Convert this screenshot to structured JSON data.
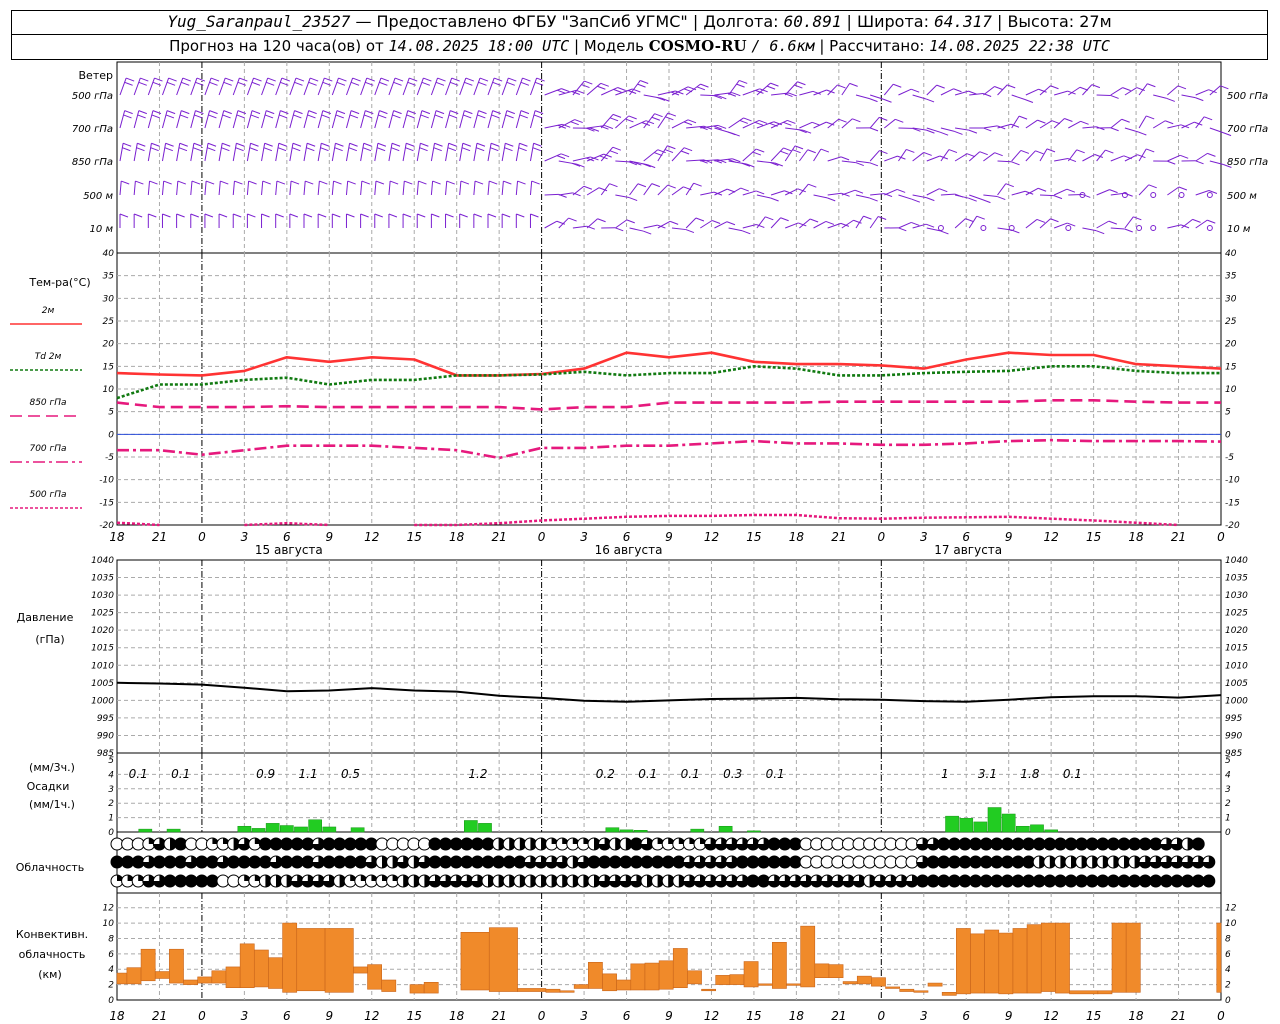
{
  "header": {
    "station": "Yug_Saranpaul_23527",
    "provider": "— Предоставлено ФГБУ \"ЗапСиб УГМС\"",
    "lon_label": "Долгота:",
    "lon": "60.891",
    "lat_label": "Широта:",
    "lat": "64.317",
    "alt_label": "Высота:",
    "alt": "27м",
    "forecast_label": "Прогноз на 120 часа(ов) от",
    "forecast_time": "14.08.2025 18:00 UTC",
    "model_label": "Модель",
    "model": "COSMO-RU",
    "resolution": "/ 6.6км",
    "calc_label": "Рассчитано:",
    "calc_time": "14.08.2025 22:38 UTC"
  },
  "colors": {
    "t2m": "#ff3333",
    "td2m": "#117a11",
    "t850": "#e6197d",
    "t700": "#e6197d",
    "t500": "#e6197d",
    "pressure": "#000000",
    "precip": "#22cc22",
    "convective": "#f08a2a",
    "wind": "#7a1fd0"
  },
  "time_axis": {
    "hour_labels": [
      "18",
      "21",
      "0",
      "3",
      "6",
      "9",
      "12",
      "15",
      "18",
      "21",
      "0",
      "3",
      "6",
      "9",
      "12",
      "15",
      "18",
      "21",
      "0",
      "3",
      "6",
      "9",
      "12",
      "15",
      "18",
      "21",
      "0"
    ],
    "day_labels": [
      {
        "label": "15 августа",
        "at_hour": 12
      },
      {
        "label": "16 августа",
        "at_hour": 36
      },
      {
        "label": "17 августа",
        "at_hour": 60
      }
    ]
  },
  "wind_panel": {
    "title": "Ветер",
    "levels": [
      "500 гПа",
      "700 гПа",
      "850 гПа",
      "500 м",
      "10   м"
    ]
  },
  "temperature_panel": {
    "title": "Тем-ра(°C)",
    "legend": [
      {
        "label": "2м",
        "series": "t2m",
        "dash": "solid"
      },
      {
        "label": "Td  2м",
        "series": "td2m",
        "dash": "dotted"
      },
      {
        "label": "850 гПа",
        "series": "t850",
        "dash": "dashed"
      },
      {
        "label": "700 гПа",
        "series": "t700",
        "dash": "dashdot"
      },
      {
        "label": "500 гПа",
        "series": "t500",
        "dash": "dotted"
      }
    ]
  },
  "pressure_panel": {
    "title_line1": "Давление",
    "title_line2": "(гПа)"
  },
  "precip_panel": {
    "line1": "(мм/3ч.)",
    "line2": "Осадки",
    "line3": "(мм/1ч.)"
  },
  "cloud_panel": {
    "title": "Облачность"
  },
  "convective_panel": {
    "line1": "Конвективн.",
    "line2": "облачность",
    "line3": "(км)"
  },
  "chart_data": [
    {
      "type": "line",
      "name": "temperature",
      "x_hours": [
        0,
        3,
        6,
        9,
        12,
        15,
        18,
        21,
        24,
        27,
        30,
        33,
        36,
        39,
        42,
        45,
        48,
        51,
        54,
        57,
        60,
        63,
        66,
        69,
        72,
        75,
        78
      ],
      "ylim": [
        -20,
        40
      ],
      "yticks": [
        -20,
        -15,
        -10,
        -5,
        0,
        5,
        10,
        15,
        20,
        25,
        30,
        35,
        40
      ],
      "series": [
        {
          "name": "2м",
          "key": "t2m",
          "values": [
            13.5,
            13.2,
            13,
            14,
            17,
            16,
            17,
            16.5,
            13,
            13,
            13.3,
            14.5,
            18,
            17,
            18,
            16,
            15.5,
            15.5,
            15.2,
            14.5,
            16.5,
            18,
            17.5,
            17.5,
            15.5,
            15,
            14.5
          ]
        },
        {
          "name": "Td  2м",
          "key": "td2m",
          "values": [
            8,
            11,
            11,
            12,
            12.5,
            11,
            12,
            12,
            13,
            13,
            13.2,
            13.8,
            13,
            13.5,
            13.5,
            15,
            14.5,
            13,
            13,
            13.5,
            13.8,
            14,
            15,
            15,
            14,
            13.5,
            13.5
          ]
        },
        {
          "name": "850 гПа",
          "key": "t850",
          "values": [
            7,
            6,
            6,
            6,
            6.2,
            6,
            6,
            6,
            6,
            6,
            5.5,
            6,
            6,
            7,
            7,
            7,
            7,
            7.2,
            7.2,
            7.2,
            7.2,
            7.2,
            7.5,
            7.5,
            7.2,
            7,
            7
          ]
        },
        {
          "name": "700 гПа",
          "key": "t700",
          "values": [
            -3.5,
            -3.5,
            -4.5,
            -3.5,
            -2.5,
            -2.5,
            -2.5,
            -3,
            -3.5,
            -5.2,
            -3,
            -3,
            -2.5,
            -2.5,
            -2,
            -1.5,
            -2,
            -2,
            -2.3,
            -2.3,
            -2,
            -1.5,
            -1.3,
            -1.5,
            -1.5,
            -1.5,
            -1.6
          ]
        },
        {
          "name": "500 гПа",
          "key": "t500",
          "values": [
            -19.5,
            -20,
            null,
            -20,
            -19.6,
            -20,
            null,
            -20,
            -20,
            -19.6,
            -19,
            -18.6,
            -18.2,
            -18,
            -18,
            -17.8,
            -17.8,
            -18.5,
            -18.6,
            -18.4,
            -18.3,
            -18.2,
            -18.6,
            -19,
            -19.5,
            -20,
            null
          ]
        }
      ]
    },
    {
      "type": "line",
      "name": "pressure",
      "x_hours": [
        0,
        3,
        6,
        9,
        12,
        15,
        18,
        21,
        24,
        27,
        30,
        33,
        36,
        39,
        42,
        45,
        48,
        51,
        54,
        57,
        60,
        63,
        66,
        69,
        72,
        75,
        78
      ],
      "ylim": [
        985,
        1040
      ],
      "yticks": [
        985,
        990,
        995,
        1000,
        1005,
        1010,
        1015,
        1020,
        1025,
        1030,
        1035,
        1040
      ],
      "series": [
        {
          "name": "",
          "key": "pressure",
          "values": [
            1005,
            1004.8,
            1004.5,
            1003.6,
            1002.6,
            1002.8,
            1003.5,
            1002.8,
            1002.5,
            1001.3,
            1000.7,
            999.9,
            999.6,
            1000,
            1000.4,
            1000.5,
            1000.7,
            1000.3,
            1000.2,
            999.8,
            999.6,
            1000.2,
            1000.9,
            1001.2,
            1001.2,
            1000.8,
            1001.5
          ]
        }
      ]
    },
    {
      "type": "bar",
      "name": "precipitation",
      "ylim": [
        0,
        5
      ],
      "yticks": [
        0,
        1,
        2,
        3,
        4,
        5
      ],
      "three_hour_totals": [
        {
          "hour": 1.5,
          "value": "0.1"
        },
        {
          "hour": 4.5,
          "value": "0.1"
        },
        {
          "hour": 10.5,
          "value": "0.9"
        },
        {
          "hour": 13.5,
          "value": "1.1"
        },
        {
          "hour": 16.5,
          "value": "0.5"
        },
        {
          "hour": 25.5,
          "value": "1.2"
        },
        {
          "hour": 34.5,
          "value": "0.2"
        },
        {
          "hour": 37.5,
          "value": "0.1"
        },
        {
          "hour": 40.5,
          "value": "0.1"
        },
        {
          "hour": 43.5,
          "value": "0.3"
        },
        {
          "hour": 46.5,
          "value": "0.1"
        },
        {
          "hour": 58.5,
          "value": "1"
        },
        {
          "hour": 61.5,
          "value": "3.1"
        },
        {
          "hour": 64.5,
          "value": "1.8"
        },
        {
          "hour": 67.5,
          "value": "0.1"
        }
      ],
      "hourly": {
        "2": 0.2,
        "4": 0.2,
        "9": 0.4,
        "10": 0.25,
        "11": 0.6,
        "12": 0.45,
        "13": 0.35,
        "14": 0.85,
        "15": 0.35,
        "17": 0.3,
        "25": 0.8,
        "26": 0.6,
        "35": 0.3,
        "36": 0.15,
        "37": 0.12,
        "41": 0.2,
        "43": 0.4,
        "45": 0.08,
        "59": 1.1,
        "60": 0.95,
        "61": 0.7,
        "62": 1.7,
        "63": 1.25,
        "64": 0.4,
        "65": 0.5,
        "66": 0.15
      }
    },
    {
      "type": "bar",
      "name": "convective_cloud",
      "ylim": [
        0,
        13
      ],
      "yticks": [
        0,
        2,
        4,
        6,
        8,
        10,
        12
      ],
      "unit": "км",
      "layers": [
        {
          "h0": 0,
          "h1": 0.7,
          "base": 2.1,
          "top": 3.5
        },
        {
          "h0": 0.7,
          "h1": 1.7,
          "base": 2.1,
          "top": 4.2
        },
        {
          "h0": 1.7,
          "h1": 2.7,
          "base": 2.5,
          "top": 6.6
        },
        {
          "h0": 2.7,
          "h1": 3.7,
          "base": 2.8,
          "top": 3.7
        },
        {
          "h0": 3.7,
          "h1": 4.7,
          "base": 2.2,
          "top": 6.6
        },
        {
          "h0": 4.7,
          "h1": 5.7,
          "base": 2.0,
          "top": 2.6
        },
        {
          "h0": 5.7,
          "h1": 6.7,
          "base": 2.2,
          "top": 3.0
        },
        {
          "h0": 6.7,
          "h1": 7.7,
          "base": 2.2,
          "top": 3.8
        },
        {
          "h0": 7.7,
          "h1": 8.7,
          "base": 1.6,
          "top": 4.3
        },
        {
          "h0": 8.7,
          "h1": 9.7,
          "base": 1.6,
          "top": 7.3
        },
        {
          "h0": 9.7,
          "h1": 10.7,
          "base": 1.7,
          "top": 6.5
        },
        {
          "h0": 10.7,
          "h1": 11.7,
          "base": 1.5,
          "top": 5.5
        },
        {
          "h0": 11.7,
          "h1": 12.7,
          "base": 1.0,
          "top": 10.0
        },
        {
          "h0": 12.7,
          "h1": 14.7,
          "base": 1.2,
          "top": 9.3
        },
        {
          "h0": 14.7,
          "h1": 16.7,
          "base": 1.0,
          "top": 9.3
        },
        {
          "h0": 16.7,
          "h1": 17.7,
          "base": 3.5,
          "top": 4.3
        },
        {
          "h0": 17.7,
          "h1": 18.7,
          "base": 1.4,
          "top": 4.6
        },
        {
          "h0": 18.7,
          "h1": 19.7,
          "base": 1.1,
          "top": 2.6
        },
        {
          "h0": 20.7,
          "h1": 21.7,
          "base": 0.9,
          "top": 2.0
        },
        {
          "h0": 21.7,
          "h1": 22.7,
          "base": 0.9,
          "top": 2.3
        },
        {
          "h0": 24.3,
          "h1": 26.3,
          "base": 1.3,
          "top": 8.8
        },
        {
          "h0": 26.3,
          "h1": 28.3,
          "base": 1.1,
          "top": 9.4
        },
        {
          "h0": 28.3,
          "h1": 30.3,
          "base": 1.1,
          "top": 1.5
        },
        {
          "h0": 30.3,
          "h1": 31.3,
          "base": 1.0,
          "top": 1.4
        },
        {
          "h0": 31.3,
          "h1": 32.3,
          "base": 1.0,
          "top": 1.2
        },
        {
          "h0": 32.3,
          "h1": 33.3,
          "base": 1.5,
          "top": 2.0
        },
        {
          "h0": 33.3,
          "h1": 34.3,
          "base": 1.5,
          "top": 4.9
        },
        {
          "h0": 34.3,
          "h1": 35.3,
          "base": 1.2,
          "top": 3.4
        },
        {
          "h0": 35.3,
          "h1": 36.3,
          "base": 1.3,
          "top": 2.6
        },
        {
          "h0": 36.3,
          "h1": 37.3,
          "base": 1.3,
          "top": 4.7
        },
        {
          "h0": 37.3,
          "h1": 38.3,
          "base": 1.3,
          "top": 4.8
        },
        {
          "h0": 38.3,
          "h1": 39.3,
          "base": 1.4,
          "top": 5.1
        },
        {
          "h0": 39.3,
          "h1": 40.3,
          "base": 1.6,
          "top": 6.7
        },
        {
          "h0": 40.3,
          "h1": 41.3,
          "base": 2.1,
          "top": 3.8
        },
        {
          "h0": 41.3,
          "h1": 42.3,
          "base": 1.2,
          "top": 1.4
        },
        {
          "h0": 42.3,
          "h1": 43.3,
          "base": 2.0,
          "top": 3.2
        },
        {
          "h0": 43.3,
          "h1": 44.3,
          "base": 2.0,
          "top": 3.3
        },
        {
          "h0": 44.3,
          "h1": 45.3,
          "base": 1.7,
          "top": 5.0
        },
        {
          "h0": 45.3,
          "h1": 46.3,
          "base": 1.9,
          "top": 2.1
        },
        {
          "h0": 46.3,
          "h1": 47.3,
          "base": 1.5,
          "top": 7.5
        },
        {
          "h0": 47.3,
          "h1": 48.3,
          "base": 1.9,
          "top": 2.1
        },
        {
          "h0": 48.3,
          "h1": 49.3,
          "base": 1.7,
          "top": 9.6
        },
        {
          "h0": 49.3,
          "h1": 50.3,
          "base": 2.9,
          "top": 4.7
        },
        {
          "h0": 50.3,
          "h1": 51.3,
          "base": 2.9,
          "top": 4.6
        },
        {
          "h0": 51.3,
          "h1": 52.3,
          "base": 2.1,
          "top": 2.4
        },
        {
          "h0": 52.3,
          "h1": 53.3,
          "base": 2.1,
          "top": 3.1
        },
        {
          "h0": 53.3,
          "h1": 54.3,
          "base": 1.8,
          "top": 2.9
        },
        {
          "h0": 54.3,
          "h1": 55.3,
          "base": 1.5,
          "top": 1.7
        },
        {
          "h0": 55.3,
          "h1": 56.3,
          "base": 1.1,
          "top": 1.4
        },
        {
          "h0": 56.3,
          "h1": 57.3,
          "base": 1.0,
          "top": 1.2
        },
        {
          "h0": 57.3,
          "h1": 58.3,
          "base": 1.8,
          "top": 2.2
        },
        {
          "h0": 58.3,
          "h1": 59.3,
          "base": 0.6,
          "top": 1.0
        },
        {
          "h0": 59.3,
          "h1": 60.3,
          "base": 0.8,
          "top": 9.3
        },
        {
          "h0": 60.3,
          "h1": 61.3,
          "base": 0.9,
          "top": 8.6
        },
        {
          "h0": 61.3,
          "h1": 62.3,
          "base": 0.9,
          "top": 9.1
        },
        {
          "h0": 62.3,
          "h1": 63.3,
          "base": 0.8,
          "top": 8.7
        },
        {
          "h0": 63.3,
          "h1": 64.3,
          "base": 0.9,
          "top": 9.3
        },
        {
          "h0": 64.3,
          "h1": 65.3,
          "base": 0.9,
          "top": 9.8
        },
        {
          "h0": 65.3,
          "h1": 66.3,
          "base": 1.1,
          "top": 10.0
        },
        {
          "h0": 66.3,
          "h1": 67.3,
          "base": 0.9,
          "top": 10.0
        },
        {
          "h0": 67.3,
          "h1": 69.3,
          "base": 0.8,
          "top": 1.2
        },
        {
          "h0": 69.3,
          "h1": 70.3,
          "base": 0.8,
          "top": 1.2
        },
        {
          "h0": 70.3,
          "h1": 71.3,
          "base": 1.0,
          "top": 10.0
        },
        {
          "h0": 71.3,
          "h1": 72.3,
          "base": 1.0,
          "top": 10.0
        },
        {
          "h0": 77.7,
          "h1": 78.0,
          "base": 1.0,
          "top": 10.0
        }
      ]
    }
  ],
  "cloud_rows": [
    [
      0,
      0,
      0,
      1,
      3,
      2,
      4,
      0,
      0,
      1,
      1,
      2,
      3,
      1,
      4,
      4,
      4,
      4,
      4,
      3,
      4,
      4,
      4,
      4,
      4,
      0,
      0,
      0,
      0,
      0,
      4,
      4,
      4,
      4,
      4,
      4,
      2,
      2,
      2,
      2,
      2,
      1,
      1,
      1,
      1,
      2,
      3,
      2,
      2,
      4,
      3,
      1,
      1,
      1,
      1,
      1,
      3,
      3,
      3,
      3,
      3,
      3,
      4,
      4,
      4,
      0,
      0,
      0,
      0,
      0,
      0,
      0,
      0,
      0,
      0,
      0,
      3,
      3,
      4,
      4,
      4,
      4,
      4,
      4,
      4,
      4,
      4,
      4,
      4,
      4,
      4,
      4,
      4,
      4,
      4,
      4,
      4,
      4,
      4,
      3,
      3,
      2,
      4
    ],
    [
      4,
      4,
      4,
      3,
      4,
      4,
      4,
      3,
      4,
      4,
      3,
      4,
      4,
      4,
      4,
      3,
      4,
      4,
      4,
      3,
      4,
      4,
      4,
      4,
      3,
      2,
      2,
      3,
      2,
      3,
      4,
      4,
      4,
      4,
      4,
      4,
      4,
      4,
      4,
      3,
      3,
      3,
      3,
      2,
      3,
      4,
      4,
      4,
      4,
      4,
      4,
      4,
      4,
      4,
      3,
      3,
      3,
      3,
      3,
      4,
      4,
      4,
      4,
      4,
      4,
      0,
      0,
      0,
      0,
      0,
      0,
      0,
      0,
      0,
      0,
      0,
      3,
      4,
      4,
      4,
      4,
      4,
      4,
      4,
      4,
      4,
      4,
      2,
      2,
      2,
      2,
      2,
      2,
      2,
      2,
      2,
      2,
      3,
      3,
      3,
      3,
      3,
      3,
      3
    ],
    [
      1,
      1,
      1,
      3,
      3,
      4,
      4,
      4,
      4,
      4,
      0,
      0,
      1,
      1,
      2,
      2,
      2,
      3,
      3,
      3,
      3,
      2,
      1,
      1,
      1,
      1,
      1,
      2,
      2,
      2,
      3,
      3,
      3,
      3,
      3,
      2,
      2,
      2,
      2,
      2,
      2,
      2,
      2,
      2,
      2,
      2,
      3,
      3,
      3,
      3,
      2,
      2,
      2,
      2,
      3,
      3,
      3,
      3,
      3,
      3,
      4,
      4,
      3,
      3,
      3,
      3,
      3,
      3,
      3,
      3,
      3,
      2,
      3,
      3,
      3,
      3,
      4,
      4,
      4,
      4,
      4,
      4,
      4,
      4,
      4,
      4,
      4,
      4,
      4,
      4,
      4,
      4,
      4,
      4,
      4,
      4,
      4,
      4,
      4,
      4,
      4,
      4,
      4,
      4
    ]
  ]
}
